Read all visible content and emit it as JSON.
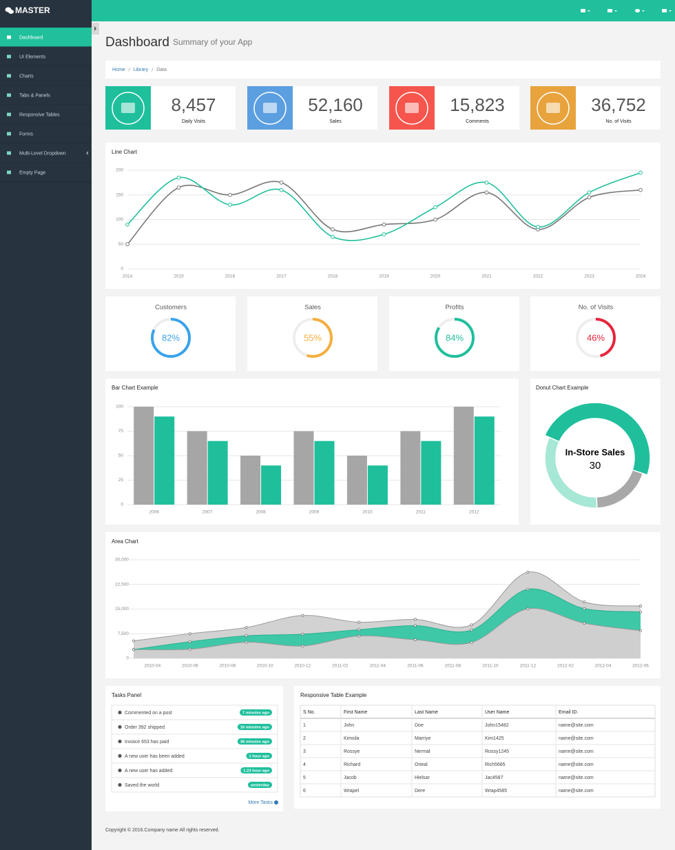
{
  "brand": "MASTER",
  "menu": [
    "Dashboard",
    "UI Elements",
    "Charts",
    "Tabs & Panels",
    "Responsive Tables",
    "Forms",
    "Multi-Level Dropdown",
    "Empty Page"
  ],
  "page": {
    "title": "Dashboard",
    "subtitle": "Summary of your App"
  },
  "breadcrumb": [
    "Home",
    "Library",
    "Data"
  ],
  "stats": [
    {
      "value": "8,457",
      "label": "Daily Visits"
    },
    {
      "value": "52,160",
      "label": "Sales"
    },
    {
      "value": "15,823",
      "label": "Comments"
    },
    {
      "value": "36,752",
      "label": "No. of Visits"
    }
  ],
  "line_chart": {
    "type": "line",
    "title": "Line Chart",
    "x": [
      2014,
      2015,
      2016,
      2017,
      2018,
      2019,
      2020,
      2021,
      2022,
      2023,
      2024
    ],
    "xlim": [
      2014,
      2024
    ],
    "xticks": [
      2014,
      2015,
      2016,
      2017,
      2018,
      2019,
      2020,
      2021,
      2022,
      2023,
      2024
    ],
    "ylim": [
      0,
      200
    ],
    "yticks": [
      0,
      50,
      100,
      150,
      200
    ],
    "grid": true,
    "series": [
      {
        "color": "#1fbf9c",
        "values": [
          90,
          185,
          130,
          160,
          65,
          70,
          125,
          175,
          85,
          155,
          195
        ]
      },
      {
        "color": "#777777",
        "values": [
          50,
          165,
          150,
          175,
          80,
          90,
          100,
          155,
          80,
          145,
          160
        ]
      }
    ]
  },
  "gauges": {
    "type": "gauge",
    "categories": [
      "Customers",
      "Sales",
      "Profits",
      "No. of Visits"
    ],
    "values": [
      82,
      55,
      84,
      46
    ],
    "value_labels": [
      "82%",
      "55%",
      "84%",
      "46%"
    ],
    "colors": [
      "#3aa3ea",
      "#f4ae3d",
      "#1fbf9c",
      "#e8243b"
    ],
    "ylim": [
      0,
      100
    ]
  },
  "bar_chart": {
    "type": "bar",
    "title": "Bar Chart Example",
    "categories": [
      "2006",
      "2007",
      "2008",
      "2009",
      "2010",
      "2011",
      "2012"
    ],
    "ylim": [
      0,
      100
    ],
    "yticks": [
      0,
      25,
      50,
      75,
      100
    ],
    "grid": true,
    "series": [
      {
        "color": "#a6a6a6",
        "values": [
          100,
          75,
          50,
          75,
          50,
          75,
          100
        ]
      },
      {
        "color": "#1fbf9c",
        "values": [
          90,
          65,
          40,
          65,
          40,
          65,
          90
        ]
      }
    ]
  },
  "donut_chart": {
    "type": "donut",
    "title": "Donut Chart Example",
    "categories": [
      "In-Store Sales",
      null,
      null
    ],
    "values": [
      30,
      12,
      20
    ],
    "colors": [
      "#1fbf9c",
      "#a8a8a8",
      "#a6e7d5"
    ]
  },
  "area_chart": {
    "type": "area",
    "title": "Area Chart",
    "stacked": true,
    "x": [
      "2010-03",
      "2010-06",
      "2010-09",
      "2010-12",
      "2011-03",
      "2011-06",
      "2011-09",
      "2011-12",
      "2012-03",
      "2012-06"
    ],
    "xlim": [
      "2010-03",
      "2012-06"
    ],
    "xticks": [
      "2010-04",
      "2010-06",
      "2010-08",
      "2010-10",
      "2010-12",
      "2011-02",
      "2011-04",
      "2011-06",
      "2011-08",
      "2011-10",
      "2011-12",
      "2012-02",
      "2012-04",
      "2012-06"
    ],
    "ylim": [
      0,
      30000
    ],
    "yticks": [
      0,
      {
        "value": 7500,
        "label": "7,500"
      },
      {
        "value": 15000,
        "label": "15,000"
      },
      {
        "value": 22500,
        "label": "22,500"
      },
      {
        "value": 30000,
        "label": "30,000"
      }
    ],
    "grid": true,
    "series": [
      {
        "color": "#cfcfcf",
        "line": "#9a9a9a",
        "values": [
          2666,
          2778,
          4912,
          3767,
          6810,
          5670,
          4820,
          15073,
          10687,
          8432
        ]
      },
      {
        "color": "#3ec8a7",
        "line": "#26b08f",
        "values": [
          0,
          2294,
          1969,
          3597,
          1914,
          4293,
          3795,
          5967,
          4460,
          5713
        ]
      },
      {
        "color": "#d2d2d2",
        "line": "#9a9a9a",
        "values": [
          2647,
          2441,
          2501,
          5689,
          2293,
          1881,
          1588,
          5175,
          2028,
          1791
        ]
      }
    ]
  },
  "tasks": {
    "title": "Tasks Panel",
    "items": [
      {
        "text": "Commented on a post",
        "time": "7 minutes ago"
      },
      {
        "text": "Order 392 shipped",
        "time": "16 minutes ago"
      },
      {
        "text": "Invoice 653 has paid",
        "time": "36 minutes ago"
      },
      {
        "text": "A new user has been added",
        "time": "1 hour ago"
      },
      {
        "text": "A new user has added",
        "time": "1.23 hour ago"
      },
      {
        "text": "Saved the world",
        "time": "yesterday"
      }
    ],
    "more": "More Tasks"
  },
  "table": {
    "title": "Responsive Table Example",
    "columns": [
      "S No.",
      "First Name",
      "Last Name",
      "User Name",
      "Email ID."
    ],
    "rows": [
      [
        "1",
        "John",
        "Doe",
        "John15482",
        "name@site.com"
      ],
      [
        "2",
        "Kimsila",
        "Marriye",
        "Kim1425",
        "name@site.com"
      ],
      [
        "3",
        "Rossye",
        "Nermal",
        "Rossy1245",
        "name@site.com"
      ],
      [
        "4",
        "Richard",
        "Orieal",
        "Rich5685",
        "name@site.com"
      ],
      [
        "5",
        "Jacob",
        "Hielsar",
        "Jac4587",
        "name@site.com"
      ],
      [
        "6",
        "Wrapel",
        "Dere",
        "Wrap4585",
        "name@site.com"
      ]
    ]
  },
  "footer": "Copyright © 2016.Company name All rights reserved."
}
